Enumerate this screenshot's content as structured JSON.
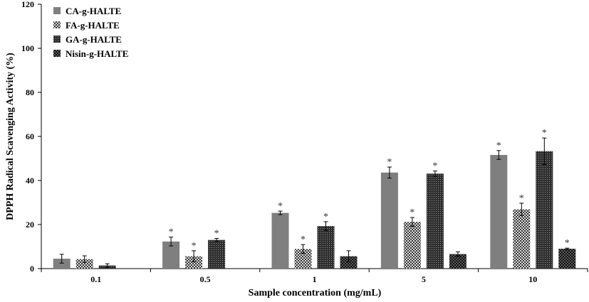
{
  "chart_data": {
    "type": "bar",
    "title": "",
    "xlabel": "Sample concentration (mg/mL)",
    "ylabel": "DPPH Radical Scavenging Activity (%)",
    "ylim": [
      0,
      120
    ],
    "yticks": [
      "0",
      "20",
      "40",
      "60",
      "80",
      "100",
      "120"
    ],
    "categories": [
      "0.1",
      "0.5",
      "1",
      "5",
      "10"
    ],
    "series": [
      {
        "name": "CA-g-HALTE",
        "color": "#7f7f7f",
        "pattern": "solid",
        "values": [
          4.5,
          12.3,
          25.3,
          43.6,
          51.6
        ],
        "errors": [
          2.0,
          2.0,
          0.8,
          2.5,
          2.0
        ],
        "significance": [
          "",
          "*",
          "*",
          "*",
          "*"
        ]
      },
      {
        "name": "FA-g-HALTE",
        "color": "#8a8a8a",
        "pattern": "fine-checker",
        "values": [
          4.3,
          5.6,
          8.9,
          21.2,
          26.9
        ],
        "errors": [
          1.5,
          2.5,
          2.0,
          2.0,
          2.8
        ],
        "significance": [
          "",
          "*",
          "*",
          "*",
          "*"
        ]
      },
      {
        "name": "GA-g-HALTE",
        "color": "#404040",
        "pattern": "dark-grid",
        "values": [
          1.4,
          13.0,
          19.3,
          43.1,
          53.3
        ],
        "errors": [
          0.8,
          0.7,
          2.0,
          1.2,
          6.0
        ],
        "significance": [
          "",
          "*",
          "*",
          "*",
          "*"
        ]
      },
      {
        "name": "Nisin-g-HALTE",
        "color": "#202020",
        "pattern": "dark-checker",
        "values": [
          0,
          0,
          5.6,
          6.6,
          9.0
        ],
        "errors": [
          0,
          0,
          2.5,
          1.0,
          0.3
        ],
        "significance": [
          "",
          "",
          "",
          "",
          "*"
        ]
      }
    ],
    "grid": false,
    "legend": "top-left"
  }
}
